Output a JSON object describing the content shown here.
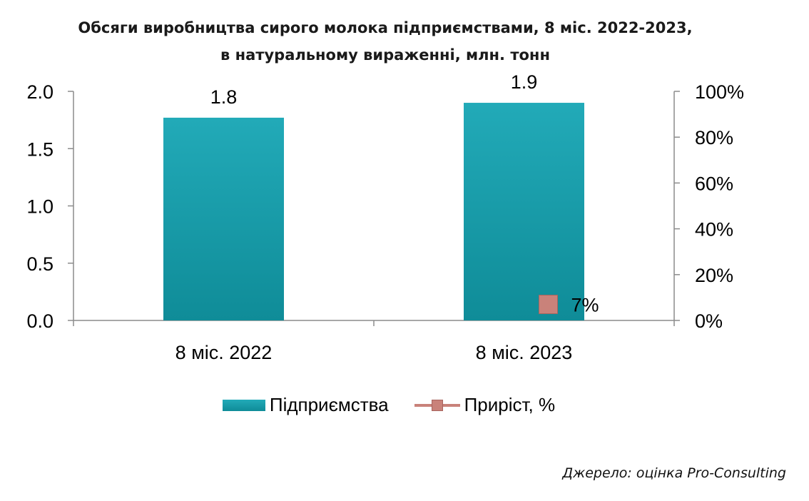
{
  "title_lines": [
    "Обсяги виробництва сирого молока підприємствами, 8 міс. 2022-2023,",
    "в натуральному вираженні, млн. тонн"
  ],
  "source": "Джерело: оцінка Pro-Consulting",
  "legend": {
    "bars": "Підприємства",
    "line": "Приріст, %"
  },
  "colors": {
    "bar_top": "#22aab8",
    "bar_bottom": "#0f8c98",
    "line": "#c9827a"
  },
  "chart_data": {
    "type": "bar",
    "categories": [
      "8 міс. 2022",
      "8 міс. 2023"
    ],
    "series": [
      {
        "name": "Підприємства",
        "axis": "left",
        "values": [
          1.77,
          1.9
        ],
        "labels": [
          "1.8",
          "1.9"
        ]
      },
      {
        "name": "Приріст, %",
        "axis": "right",
        "type": "line",
        "values": [
          null,
          7
        ],
        "labels": [
          "",
          "7%"
        ]
      }
    ],
    "ylim": [
      0,
      2.0
    ],
    "yticks": [
      "0.0",
      "0.5",
      "1.0",
      "1.5",
      "2.0"
    ],
    "y2lim": [
      0,
      100
    ],
    "y2ticks": [
      "0%",
      "20%",
      "40%",
      "60%",
      "80%",
      "100%"
    ],
    "xlabel": "",
    "ylabel": "",
    "grid": false,
    "legend_position": "bottom"
  }
}
